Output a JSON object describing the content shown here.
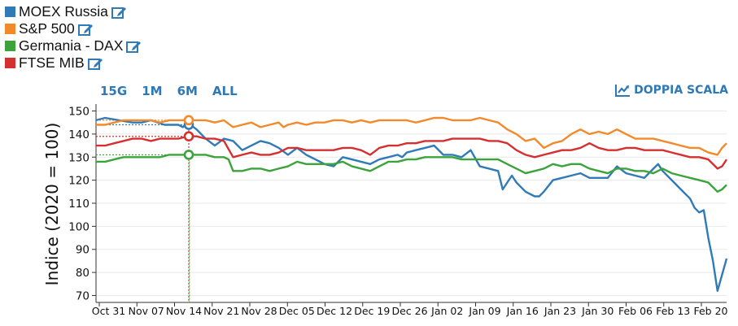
{
  "legend": {
    "items": [
      {
        "label": "MOEX Russia",
        "color": "#2f7ab7"
      },
      {
        "label": "S&P 500",
        "color": "#f4892a"
      },
      {
        "label": "Germania - DAX",
        "color": "#3aa33a"
      },
      {
        "label": "FTSE MIB",
        "color": "#d62f2f"
      }
    ],
    "edit_icon": "edit-icon"
  },
  "range_buttons": [
    "15G",
    "1M",
    "6M",
    "ALL"
  ],
  "dual_scale": {
    "label": "DOPPIA SCALA",
    "icon": "chart-line-icon"
  },
  "chart_data": {
    "type": "line",
    "ylabel": "Indice (2020 = 100)",
    "ylim": [
      67,
      153
    ],
    "yticks": [
      70,
      80,
      90,
      100,
      110,
      120,
      130,
      140,
      150
    ],
    "x_tick_labels": [
      "Oct 31",
      "Nov 07",
      "Nov 14",
      "Nov 21",
      "Nov 28",
      "Dec 05",
      "Dec 12",
      "Dec 19",
      "Dec 26",
      "Jan 02",
      "Jan 09",
      "Jan 16",
      "Jan 23",
      "Jan 30",
      "Feb 06",
      "Feb 13",
      "Feb 20"
    ],
    "grid": true,
    "highlight": {
      "date": "Nov 14",
      "values": {
        "MOEX Russia": 144,
        "S&P 500": 146,
        "Germania - DAX": 131,
        "FTSE MIB": 139
      }
    },
    "series": [
      {
        "name": "MOEX Russia",
        "color": "#2f7ab7",
        "points": [
          [
            0,
            146
          ],
          [
            2,
            147
          ],
          [
            5,
            146
          ],
          [
            8,
            145
          ],
          [
            10,
            145
          ],
          [
            12,
            146
          ],
          [
            15,
            144
          ],
          [
            18,
            144
          ],
          [
            19,
            143
          ],
          [
            20,
            145
          ],
          [
            22,
            142
          ],
          [
            24,
            138
          ],
          [
            26,
            135
          ],
          [
            28,
            138
          ],
          [
            30,
            137
          ],
          [
            32,
            133
          ],
          [
            34,
            135
          ],
          [
            36,
            137
          ],
          [
            38,
            136
          ],
          [
            40,
            134
          ],
          [
            42,
            131
          ],
          [
            44,
            134
          ],
          [
            46,
            131
          ],
          [
            48,
            129
          ],
          [
            50,
            127
          ],
          [
            52,
            126
          ],
          [
            54,
            130
          ],
          [
            56,
            129
          ],
          [
            58,
            128
          ],
          [
            60,
            127
          ],
          [
            62,
            129
          ],
          [
            64,
            130
          ],
          [
            66,
            131
          ],
          [
            67,
            130
          ],
          [
            68,
            132
          ],
          [
            70,
            133
          ],
          [
            72,
            134
          ],
          [
            74,
            135
          ],
          [
            76,
            131
          ],
          [
            78,
            131
          ],
          [
            80,
            130
          ],
          [
            82,
            133
          ],
          [
            84,
            126
          ],
          [
            86,
            125
          ],
          [
            88,
            124
          ],
          [
            89,
            116
          ],
          [
            90,
            119
          ],
          [
            91,
            122
          ],
          [
            92,
            119
          ],
          [
            94,
            115
          ],
          [
            96,
            113
          ],
          [
            97,
            113
          ],
          [
            98,
            115
          ],
          [
            100,
            120
          ],
          [
            102,
            121
          ],
          [
            104,
            122
          ],
          [
            106,
            123
          ],
          [
            108,
            121
          ],
          [
            110,
            121
          ],
          [
            112,
            121
          ],
          [
            114,
            126
          ],
          [
            116,
            123
          ],
          [
            118,
            122
          ],
          [
            120,
            121
          ],
          [
            122,
            125
          ],
          [
            123,
            127
          ],
          [
            124,
            124
          ],
          [
            126,
            120
          ],
          [
            128,
            116
          ],
          [
            130,
            112
          ],
          [
            131,
            108
          ],
          [
            132,
            106
          ],
          [
            133,
            107
          ],
          [
            134,
            95
          ],
          [
            135,
            85
          ],
          [
            136,
            72
          ],
          [
            137,
            79
          ],
          [
            138,
            86
          ]
        ]
      },
      {
        "name": "S&P 500",
        "color": "#f4892a",
        "points": [
          [
            0,
            144
          ],
          [
            2,
            144
          ],
          [
            4,
            145
          ],
          [
            6,
            146
          ],
          [
            8,
            146
          ],
          [
            10,
            146
          ],
          [
            12,
            146
          ],
          [
            14,
            145
          ],
          [
            16,
            146
          ],
          [
            18,
            146
          ],
          [
            20,
            146
          ],
          [
            22,
            146
          ],
          [
            24,
            146
          ],
          [
            26,
            145
          ],
          [
            28,
            146
          ],
          [
            30,
            143
          ],
          [
            32,
            144
          ],
          [
            34,
            145
          ],
          [
            36,
            143
          ],
          [
            38,
            144
          ],
          [
            40,
            145
          ],
          [
            41,
            143
          ],
          [
            42,
            144
          ],
          [
            44,
            145
          ],
          [
            46,
            144
          ],
          [
            48,
            145
          ],
          [
            50,
            145
          ],
          [
            52,
            146
          ],
          [
            54,
            146
          ],
          [
            56,
            145
          ],
          [
            58,
            146
          ],
          [
            60,
            145
          ],
          [
            62,
            146
          ],
          [
            64,
            146
          ],
          [
            66,
            146
          ],
          [
            68,
            146
          ],
          [
            70,
            145
          ],
          [
            72,
            146
          ],
          [
            74,
            147
          ],
          [
            76,
            147
          ],
          [
            78,
            146
          ],
          [
            80,
            146
          ],
          [
            82,
            146
          ],
          [
            84,
            147
          ],
          [
            86,
            146
          ],
          [
            88,
            145
          ],
          [
            90,
            142
          ],
          [
            92,
            140
          ],
          [
            94,
            137
          ],
          [
            96,
            138
          ],
          [
            98,
            134
          ],
          [
            100,
            136
          ],
          [
            102,
            137
          ],
          [
            104,
            140
          ],
          [
            106,
            142
          ],
          [
            108,
            140
          ],
          [
            110,
            141
          ],
          [
            112,
            140
          ],
          [
            114,
            142
          ],
          [
            116,
            140
          ],
          [
            118,
            138
          ],
          [
            120,
            138
          ],
          [
            122,
            138
          ],
          [
            124,
            137
          ],
          [
            126,
            136
          ],
          [
            128,
            135
          ],
          [
            130,
            134
          ],
          [
            132,
            134
          ],
          [
            134,
            132
          ],
          [
            136,
            131
          ],
          [
            137,
            134
          ],
          [
            138,
            136
          ]
        ]
      },
      {
        "name": "Germania - DAX",
        "color": "#3aa33a",
        "points": [
          [
            0,
            128
          ],
          [
            2,
            128
          ],
          [
            4,
            129
          ],
          [
            6,
            130
          ],
          [
            8,
            130
          ],
          [
            10,
            130
          ],
          [
            12,
            130
          ],
          [
            14,
            130
          ],
          [
            16,
            131
          ],
          [
            18,
            131
          ],
          [
            20,
            131
          ],
          [
            22,
            131
          ],
          [
            24,
            131
          ],
          [
            26,
            130
          ],
          [
            28,
            130
          ],
          [
            29,
            129
          ],
          [
            30,
            124
          ],
          [
            32,
            124
          ],
          [
            34,
            125
          ],
          [
            36,
            125
          ],
          [
            38,
            124
          ],
          [
            40,
            125
          ],
          [
            42,
            126
          ],
          [
            44,
            128
          ],
          [
            46,
            127
          ],
          [
            48,
            127
          ],
          [
            50,
            127
          ],
          [
            52,
            127
          ],
          [
            54,
            128
          ],
          [
            56,
            126
          ],
          [
            58,
            125
          ],
          [
            60,
            124
          ],
          [
            62,
            126
          ],
          [
            64,
            128
          ],
          [
            66,
            128
          ],
          [
            68,
            129
          ],
          [
            70,
            129
          ],
          [
            72,
            130
          ],
          [
            74,
            130
          ],
          [
            76,
            130
          ],
          [
            78,
            130
          ],
          [
            80,
            129
          ],
          [
            82,
            129
          ],
          [
            84,
            129
          ],
          [
            86,
            129
          ],
          [
            88,
            129
          ],
          [
            90,
            127
          ],
          [
            92,
            125
          ],
          [
            94,
            123
          ],
          [
            96,
            124
          ],
          [
            98,
            125
          ],
          [
            100,
            127
          ],
          [
            102,
            126
          ],
          [
            104,
            127
          ],
          [
            106,
            127
          ],
          [
            108,
            125
          ],
          [
            110,
            124
          ],
          [
            112,
            123
          ],
          [
            114,
            125
          ],
          [
            116,
            125
          ],
          [
            118,
            124
          ],
          [
            120,
            124
          ],
          [
            122,
            123
          ],
          [
            124,
            125
          ],
          [
            126,
            123
          ],
          [
            128,
            122
          ],
          [
            130,
            121
          ],
          [
            132,
            120
          ],
          [
            134,
            119
          ],
          [
            136,
            115
          ],
          [
            137,
            116
          ],
          [
            138,
            118
          ]
        ]
      },
      {
        "name": "FTSE MIB",
        "color": "#d62f2f",
        "points": [
          [
            0,
            135
          ],
          [
            2,
            135
          ],
          [
            4,
            136
          ],
          [
            6,
            137
          ],
          [
            8,
            138
          ],
          [
            10,
            138
          ],
          [
            12,
            137
          ],
          [
            14,
            138
          ],
          [
            16,
            138
          ],
          [
            18,
            138
          ],
          [
            20,
            139
          ],
          [
            22,
            139
          ],
          [
            24,
            138
          ],
          [
            26,
            138
          ],
          [
            28,
            137
          ],
          [
            30,
            130
          ],
          [
            32,
            131
          ],
          [
            34,
            132
          ],
          [
            36,
            131
          ],
          [
            38,
            131
          ],
          [
            40,
            132
          ],
          [
            42,
            134
          ],
          [
            44,
            134
          ],
          [
            46,
            133
          ],
          [
            48,
            133
          ],
          [
            50,
            133
          ],
          [
            52,
            133
          ],
          [
            54,
            134
          ],
          [
            56,
            134
          ],
          [
            58,
            133
          ],
          [
            60,
            131
          ],
          [
            62,
            134
          ],
          [
            64,
            135
          ],
          [
            66,
            135
          ],
          [
            68,
            136
          ],
          [
            70,
            136
          ],
          [
            72,
            137
          ],
          [
            74,
            137
          ],
          [
            76,
            137
          ],
          [
            78,
            138
          ],
          [
            80,
            138
          ],
          [
            82,
            138
          ],
          [
            84,
            138
          ],
          [
            86,
            137
          ],
          [
            88,
            137
          ],
          [
            90,
            136
          ],
          [
            92,
            133
          ],
          [
            94,
            131
          ],
          [
            96,
            130
          ],
          [
            98,
            131
          ],
          [
            100,
            132
          ],
          [
            102,
            133
          ],
          [
            104,
            133
          ],
          [
            106,
            134
          ],
          [
            108,
            136
          ],
          [
            110,
            134
          ],
          [
            112,
            133
          ],
          [
            114,
            133
          ],
          [
            116,
            134
          ],
          [
            118,
            134
          ],
          [
            120,
            133
          ],
          [
            122,
            133
          ],
          [
            124,
            133
          ],
          [
            126,
            132
          ],
          [
            128,
            131
          ],
          [
            130,
            130
          ],
          [
            132,
            130
          ],
          [
            134,
            129
          ],
          [
            136,
            125
          ],
          [
            137,
            126
          ],
          [
            138,
            129
          ]
        ]
      }
    ]
  }
}
